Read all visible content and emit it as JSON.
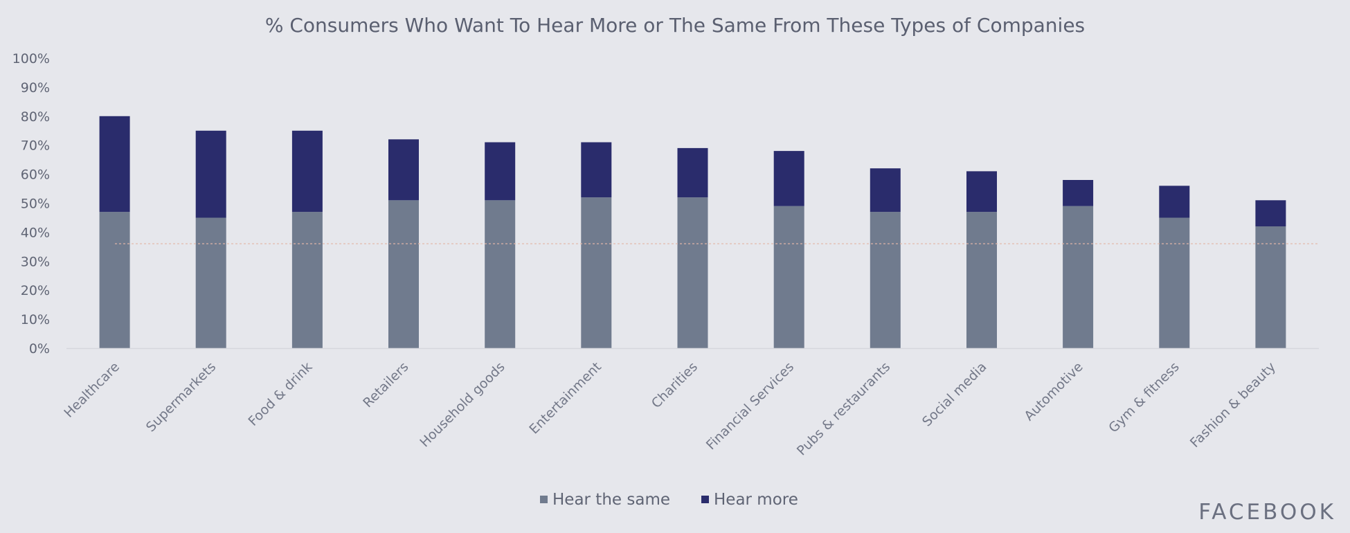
{
  "brand": "FACEBOOK",
  "colors": {
    "background": "#e6e7ec",
    "hear_same": "#707b8e",
    "hear_more": "#2a2c6c",
    "reference_line": "#e3b8a8"
  },
  "chart_data": {
    "type": "bar",
    "stacked": true,
    "title": "% Consumers Who Want To Hear More or The Same From These Types of Companies",
    "xlabel": "",
    "ylabel": "",
    "ylim": [
      0,
      100
    ],
    "yticks": [
      "0%",
      "10%",
      "20%",
      "30%",
      "40%",
      "50%",
      "60%",
      "70%",
      "80%",
      "90%",
      "100%"
    ],
    "categories": [
      "Healthcare",
      "Supermarkets",
      "Food & drink",
      "Retailers",
      "Household goods",
      "Entertainment",
      "Charities",
      "Financial Services",
      "Pubs & restaurants",
      "Social media",
      "Automotive",
      "Gym & fitness",
      "Fashion & beauty"
    ],
    "series": [
      {
        "name": "Hear the same",
        "values": [
          47,
          45,
          47,
          51,
          51,
          52,
          52,
          49,
          47,
          47,
          49,
          45,
          42
        ]
      },
      {
        "name": "Hear more",
        "values": [
          33,
          30,
          28,
          21,
          20,
          19,
          17,
          19,
          15,
          14,
          9,
          11,
          9
        ]
      }
    ],
    "reference_line": 36,
    "legend_position": "bottom",
    "grid": false
  }
}
